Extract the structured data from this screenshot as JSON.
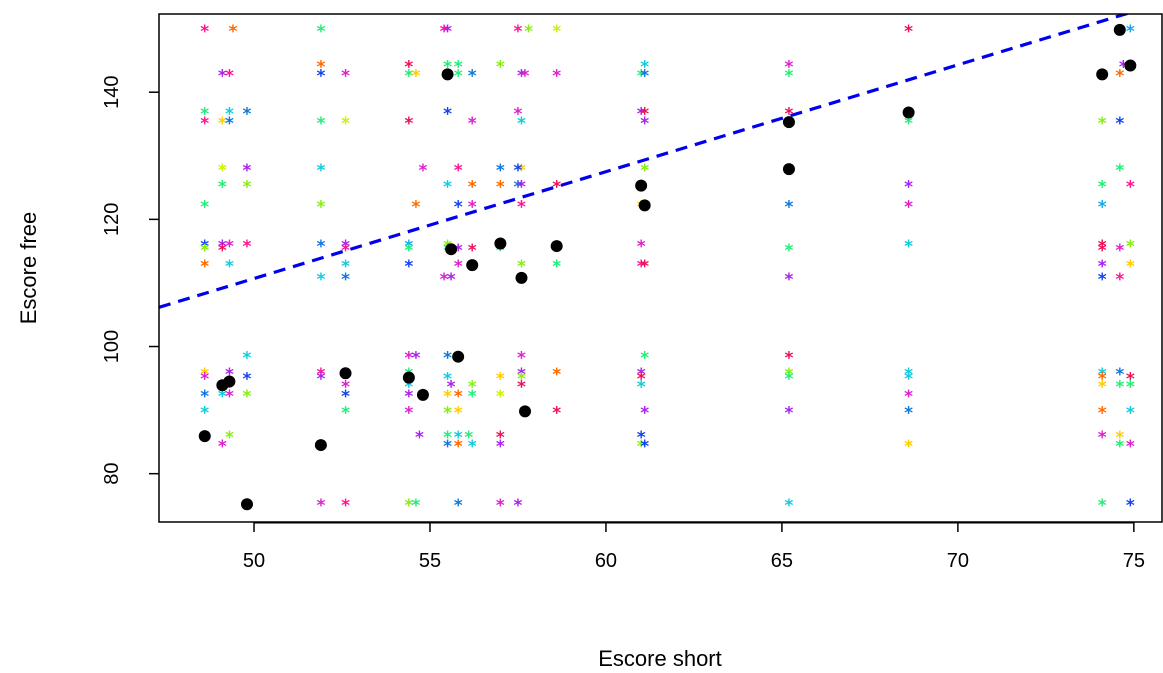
{
  "chart_data": {
    "type": "scatter",
    "xlabel": "Escore short",
    "ylabel": "Escore free",
    "xlim": [
      47.3,
      75.8
    ],
    "ylim": [
      72.4,
      152.3
    ],
    "xticks": [
      50,
      55,
      60,
      65,
      70,
      75
    ],
    "yticks": [
      80,
      100,
      120,
      140
    ],
    "fit_line": {
      "intercept": 26.7,
      "slope": 1.68,
      "color": "#0000ee",
      "style": "dashed"
    },
    "mean_points": [
      {
        "x": 48.6,
        "y": 85.9
      },
      {
        "x": 49.1,
        "y": 93.9
      },
      {
        "x": 49.3,
        "y": 94.5
      },
      {
        "x": 49.8,
        "y": 75.2
      },
      {
        "x": 51.9,
        "y": 84.5
      },
      {
        "x": 52.6,
        "y": 95.8
      },
      {
        "x": 54.4,
        "y": 95.1
      },
      {
        "x": 54.8,
        "y": 92.4
      },
      {
        "x": 55.5,
        "y": 142.8
      },
      {
        "x": 55.6,
        "y": 115.3
      },
      {
        "x": 55.8,
        "y": 98.4
      },
      {
        "x": 56.2,
        "y": 112.8
      },
      {
        "x": 57.0,
        "y": 116.2
      },
      {
        "x": 57.6,
        "y": 110.8
      },
      {
        "x": 57.7,
        "y": 89.8
      },
      {
        "x": 58.6,
        "y": 115.8
      },
      {
        "x": 61.0,
        "y": 125.3
      },
      {
        "x": 61.1,
        "y": 122.2
      },
      {
        "x": 65.2,
        "y": 135.3
      },
      {
        "x": 65.2,
        "y": 127.9
      },
      {
        "x": 68.6,
        "y": 136.8
      },
      {
        "x": 74.1,
        "y": 142.8
      },
      {
        "x": 74.6,
        "y": 149.8
      },
      {
        "x": 74.9,
        "y": 144.2
      }
    ],
    "individual_points": [
      {
        "x": 48.6,
        "y": 149.8,
        "c": "#ff1493"
      },
      {
        "x": 49.4,
        "y": 149.8,
        "c": "#ff6a00"
      },
      {
        "x": 51.9,
        "y": 149.8,
        "c": "#22ee77"
      },
      {
        "x": 55.4,
        "y": 149.8,
        "c": "#ff1493"
      },
      {
        "x": 55.5,
        "y": 149.8,
        "c": "#aa22ee"
      },
      {
        "x": 57.5,
        "y": 149.8,
        "c": "#ff1493"
      },
      {
        "x": 57.8,
        "y": 149.8,
        "c": "#88ee11"
      },
      {
        "x": 58.6,
        "y": 149.8,
        "c": "#ccee11"
      },
      {
        "x": 68.6,
        "y": 149.8,
        "c": "#ee1155"
      },
      {
        "x": 74.9,
        "y": 149.8,
        "c": "#11aaee"
      },
      {
        "x": 51.9,
        "y": 144.2,
        "c": "#ff6a00"
      },
      {
        "x": 54.4,
        "y": 144.2,
        "c": "#ee1155"
      },
      {
        "x": 55.5,
        "y": 144.2,
        "c": "#22ee77"
      },
      {
        "x": 55.8,
        "y": 144.2,
        "c": "#22ee77"
      },
      {
        "x": 57.0,
        "y": 144.2,
        "c": "#88ee11"
      },
      {
        "x": 61.1,
        "y": 144.2,
        "c": "#11ccdd"
      },
      {
        "x": 65.2,
        "y": 144.2,
        "c": "#dd22cc"
      },
      {
        "x": 74.7,
        "y": 144.2,
        "c": "#aa22ee"
      },
      {
        "x": 49.1,
        "y": 142.8,
        "c": "#aa22ee"
      },
      {
        "x": 49.3,
        "y": 142.8,
        "c": "#ff1493"
      },
      {
        "x": 51.9,
        "y": 142.8,
        "c": "#1144ee"
      },
      {
        "x": 52.6,
        "y": 142.8,
        "c": "#dd22cc"
      },
      {
        "x": 54.4,
        "y": 142.8,
        "c": "#22ee77"
      },
      {
        "x": 54.6,
        "y": 142.8,
        "c": "#ffcc00"
      },
      {
        "x": 55.8,
        "y": 142.8,
        "c": "#22ee77"
      },
      {
        "x": 56.2,
        "y": 142.8,
        "c": "#1177dd"
      },
      {
        "x": 57.6,
        "y": 142.8,
        "c": "#aa22ee"
      },
      {
        "x": 57.7,
        "y": 142.8,
        "c": "#dd22cc"
      },
      {
        "x": 58.6,
        "y": 142.8,
        "c": "#dd22cc"
      },
      {
        "x": 61.0,
        "y": 142.8,
        "c": "#22ee77"
      },
      {
        "x": 61.1,
        "y": 142.8,
        "c": "#1177dd"
      },
      {
        "x": 65.2,
        "y": 142.8,
        "c": "#22ee77"
      },
      {
        "x": 74.6,
        "y": 142.8,
        "c": "#ff6a00"
      },
      {
        "x": 48.6,
        "y": 136.8,
        "c": "#22ee77"
      },
      {
        "x": 49.3,
        "y": 136.8,
        "c": "#11ccdd"
      },
      {
        "x": 49.8,
        "y": 136.8,
        "c": "#1177dd"
      },
      {
        "x": 55.5,
        "y": 136.8,
        "c": "#1144ee"
      },
      {
        "x": 57.5,
        "y": 136.8,
        "c": "#dd22cc"
      },
      {
        "x": 61.0,
        "y": 136.8,
        "c": "#aa22ee"
      },
      {
        "x": 61.1,
        "y": 136.8,
        "c": "#ee1155"
      },
      {
        "x": 65.2,
        "y": 136.8,
        "c": "#ee1155"
      },
      {
        "x": 48.6,
        "y": 135.3,
        "c": "#ff1493"
      },
      {
        "x": 49.1,
        "y": 135.3,
        "c": "#ffcc00"
      },
      {
        "x": 49.3,
        "y": 135.3,
        "c": "#1177dd"
      },
      {
        "x": 51.9,
        "y": 135.3,
        "c": "#22ee77"
      },
      {
        "x": 52.6,
        "y": 135.3,
        "c": "#ccee11"
      },
      {
        "x": 54.4,
        "y": 135.3,
        "c": "#ee1155"
      },
      {
        "x": 56.2,
        "y": 135.3,
        "c": "#dd22cc"
      },
      {
        "x": 57.6,
        "y": 135.3,
        "c": "#11ccdd"
      },
      {
        "x": 61.1,
        "y": 135.3,
        "c": "#aa22ee"
      },
      {
        "x": 68.6,
        "y": 135.3,
        "c": "#22ee77"
      },
      {
        "x": 74.1,
        "y": 135.3,
        "c": "#88ee11"
      },
      {
        "x": 74.6,
        "y": 135.3,
        "c": "#1144ee"
      },
      {
        "x": 49.1,
        "y": 127.9,
        "c": "#ccee11"
      },
      {
        "x": 49.8,
        "y": 127.9,
        "c": "#aa22ee"
      },
      {
        "x": 51.9,
        "y": 127.9,
        "c": "#11ccdd"
      },
      {
        "x": 54.8,
        "y": 127.9,
        "c": "#dd22cc"
      },
      {
        "x": 55.8,
        "y": 127.9,
        "c": "#ff1493"
      },
      {
        "x": 57.0,
        "y": 127.9,
        "c": "#1177dd"
      },
      {
        "x": 57.6,
        "y": 127.9,
        "c": "#ffcc00"
      },
      {
        "x": 57.5,
        "y": 127.9,
        "c": "#1144ee"
      },
      {
        "x": 61.1,
        "y": 127.9,
        "c": "#88ee11"
      },
      {
        "x": 74.6,
        "y": 127.9,
        "c": "#22ee77"
      },
      {
        "x": 49.1,
        "y": 125.3,
        "c": "#22ee77"
      },
      {
        "x": 49.8,
        "y": 125.3,
        "c": "#88ee11"
      },
      {
        "x": 55.5,
        "y": 125.3,
        "c": "#11ccdd"
      },
      {
        "x": 56.2,
        "y": 125.3,
        "c": "#ff6a00"
      },
      {
        "x": 57.0,
        "y": 125.3,
        "c": "#ff6a00"
      },
      {
        "x": 57.5,
        "y": 125.3,
        "c": "#1177dd"
      },
      {
        "x": 57.6,
        "y": 125.3,
        "c": "#aa22ee"
      },
      {
        "x": 58.6,
        "y": 125.3,
        "c": "#ee1155"
      },
      {
        "x": 68.6,
        "y": 125.3,
        "c": "#aa22ee"
      },
      {
        "x": 74.1,
        "y": 125.3,
        "c": "#22ee77"
      },
      {
        "x": 74.9,
        "y": 125.3,
        "c": "#ff1493"
      },
      {
        "x": 48.6,
        "y": 122.2,
        "c": "#22ee77"
      },
      {
        "x": 51.9,
        "y": 122.2,
        "c": "#88ee11"
      },
      {
        "x": 54.6,
        "y": 122.2,
        "c": "#ff6a00"
      },
      {
        "x": 55.8,
        "y": 122.2,
        "c": "#1144ee"
      },
      {
        "x": 56.2,
        "y": 122.2,
        "c": "#dd22cc"
      },
      {
        "x": 57.6,
        "y": 122.2,
        "c": "#ff1493"
      },
      {
        "x": 61.0,
        "y": 122.2,
        "c": "#ffcc00"
      },
      {
        "x": 65.2,
        "y": 122.2,
        "c": "#1177dd"
      },
      {
        "x": 68.6,
        "y": 122.2,
        "c": "#dd22cc"
      },
      {
        "x": 74.1,
        "y": 122.2,
        "c": "#11aaee"
      },
      {
        "x": 48.6,
        "y": 116.0,
        "c": "#1144ee"
      },
      {
        "x": 49.1,
        "y": 116.0,
        "c": "#aa22ee"
      },
      {
        "x": 49.3,
        "y": 116.0,
        "c": "#dd22cc"
      },
      {
        "x": 49.8,
        "y": 116.0,
        "c": "#ff1493"
      },
      {
        "x": 51.9,
        "y": 116.0,
        "c": "#1177dd"
      },
      {
        "x": 52.6,
        "y": 116.0,
        "c": "#aa22ee"
      },
      {
        "x": 54.4,
        "y": 116.0,
        "c": "#11aaee"
      },
      {
        "x": 55.5,
        "y": 116.0,
        "c": "#88ee11"
      },
      {
        "x": 61.0,
        "y": 116.0,
        "c": "#dd22cc"
      },
      {
        "x": 68.6,
        "y": 116.0,
        "c": "#11ccdd"
      },
      {
        "x": 74.1,
        "y": 116.0,
        "c": "#ee1155"
      },
      {
        "x": 74.9,
        "y": 116.0,
        "c": "#88ee11"
      },
      {
        "x": 48.6,
        "y": 115.3,
        "c": "#88ee11"
      },
      {
        "x": 49.1,
        "y": 115.3,
        "c": "#ee1155"
      },
      {
        "x": 52.6,
        "y": 115.3,
        "c": "#ff1493"
      },
      {
        "x": 54.4,
        "y": 115.3,
        "c": "#22ee77"
      },
      {
        "x": 55.5,
        "y": 115.3,
        "c": "#22ee77"
      },
      {
        "x": 55.8,
        "y": 115.3,
        "c": "#aa22ee"
      },
      {
        "x": 56.2,
        "y": 115.3,
        "c": "#ee1155"
      },
      {
        "x": 57.0,
        "y": 115.3,
        "c": "#22ee77"
      },
      {
        "x": 65.2,
        "y": 115.3,
        "c": "#22ee77"
      },
      {
        "x": 74.1,
        "y": 115.3,
        "c": "#ee1155"
      },
      {
        "x": 74.6,
        "y": 115.3,
        "c": "#dd22cc"
      },
      {
        "x": 48.6,
        "y": 112.8,
        "c": "#ff6a00"
      },
      {
        "x": 49.3,
        "y": 112.8,
        "c": "#11ccdd"
      },
      {
        "x": 52.6,
        "y": 112.8,
        "c": "#11ccdd"
      },
      {
        "x": 54.4,
        "y": 112.8,
        "c": "#1144ee"
      },
      {
        "x": 55.8,
        "y": 112.8,
        "c": "#dd22cc"
      },
      {
        "x": 57.6,
        "y": 112.8,
        "c": "#88ee11"
      },
      {
        "x": 58.6,
        "y": 112.8,
        "c": "#22ee77"
      },
      {
        "x": 61.0,
        "y": 112.8,
        "c": "#ff1493"
      },
      {
        "x": 61.1,
        "y": 112.8,
        "c": "#ee1155"
      },
      {
        "x": 74.1,
        "y": 112.8,
        "c": "#aa22ee"
      },
      {
        "x": 74.9,
        "y": 112.8,
        "c": "#ffcc00"
      },
      {
        "x": 51.9,
        "y": 110.8,
        "c": "#11ccdd"
      },
      {
        "x": 52.6,
        "y": 110.8,
        "c": "#1177dd"
      },
      {
        "x": 55.4,
        "y": 110.8,
        "c": "#dd22cc"
      },
      {
        "x": 55.6,
        "y": 110.8,
        "c": "#aa22ee"
      },
      {
        "x": 57.6,
        "y": 110.8,
        "c": "#ff6a00"
      },
      {
        "x": 65.2,
        "y": 110.8,
        "c": "#aa22ee"
      },
      {
        "x": 74.1,
        "y": 110.8,
        "c": "#1144ee"
      },
      {
        "x": 74.6,
        "y": 110.8,
        "c": "#ff1493"
      },
      {
        "x": 49.8,
        "y": 98.4,
        "c": "#11ccdd"
      },
      {
        "x": 54.4,
        "y": 98.4,
        "c": "#dd22cc"
      },
      {
        "x": 54.6,
        "y": 98.4,
        "c": "#aa22ee"
      },
      {
        "x": 55.5,
        "y": 98.4,
        "c": "#1177dd"
      },
      {
        "x": 57.6,
        "y": 98.4,
        "c": "#dd22cc"
      },
      {
        "x": 61.1,
        "y": 98.4,
        "c": "#22ee77"
      },
      {
        "x": 65.2,
        "y": 98.4,
        "c": "#ee1155"
      },
      {
        "x": 48.6,
        "y": 95.8,
        "c": "#ffcc00"
      },
      {
        "x": 49.3,
        "y": 95.8,
        "c": "#aa22ee"
      },
      {
        "x": 51.9,
        "y": 95.8,
        "c": "#ff1493"
      },
      {
        "x": 54.4,
        "y": 95.8,
        "c": "#22ee77"
      },
      {
        "x": 57.6,
        "y": 95.8,
        "c": "#aa22ee"
      },
      {
        "x": 58.6,
        "y": 95.8,
        "c": "#ff6a00"
      },
      {
        "x": 61.0,
        "y": 95.8,
        "c": "#aa22ee"
      },
      {
        "x": 65.2,
        "y": 95.8,
        "c": "#88ee11"
      },
      {
        "x": 68.6,
        "y": 95.8,
        "c": "#11ccdd"
      },
      {
        "x": 74.1,
        "y": 95.8,
        "c": "#11ccdd"
      },
      {
        "x": 74.6,
        "y": 95.8,
        "c": "#1177dd"
      },
      {
        "x": 48.6,
        "y": 95.1,
        "c": "#dd22cc"
      },
      {
        "x": 49.8,
        "y": 95.1,
        "c": "#1144ee"
      },
      {
        "x": 51.9,
        "y": 95.1,
        "c": "#aa22ee"
      },
      {
        "x": 55.5,
        "y": 95.1,
        "c": "#11ccdd"
      },
      {
        "x": 57.0,
        "y": 95.1,
        "c": "#ffcc00"
      },
      {
        "x": 57.6,
        "y": 95.1,
        "c": "#88ee11"
      },
      {
        "x": 61.0,
        "y": 95.1,
        "c": "#ee1155"
      },
      {
        "x": 65.2,
        "y": 95.1,
        "c": "#22ee77"
      },
      {
        "x": 68.6,
        "y": 95.1,
        "c": "#11ccdd"
      },
      {
        "x": 74.1,
        "y": 95.1,
        "c": "#ff6a00"
      },
      {
        "x": 74.9,
        "y": 95.1,
        "c": "#ee1155"
      },
      {
        "x": 49.3,
        "y": 93.9,
        "c": "#ff1493"
      },
      {
        "x": 52.6,
        "y": 93.9,
        "c": "#dd22cc"
      },
      {
        "x": 54.4,
        "y": 93.9,
        "c": "#11ccdd"
      },
      {
        "x": 55.6,
        "y": 93.9,
        "c": "#aa22ee"
      },
      {
        "x": 56.2,
        "y": 93.9,
        "c": "#88ee11"
      },
      {
        "x": 57.6,
        "y": 93.9,
        "c": "#ee1155"
      },
      {
        "x": 61.0,
        "y": 93.9,
        "c": "#11ccdd"
      },
      {
        "x": 74.1,
        "y": 93.9,
        "c": "#ffcc00"
      },
      {
        "x": 74.6,
        "y": 93.9,
        "c": "#22ee77"
      },
      {
        "x": 74.9,
        "y": 93.9,
        "c": "#22ee77"
      },
      {
        "x": 48.6,
        "y": 92.4,
        "c": "#1177dd"
      },
      {
        "x": 49.1,
        "y": 92.4,
        "c": "#11ccdd"
      },
      {
        "x": 49.3,
        "y": 92.4,
        "c": "#dd22cc"
      },
      {
        "x": 49.8,
        "y": 92.4,
        "c": "#88ee11"
      },
      {
        "x": 52.6,
        "y": 92.4,
        "c": "#1144ee"
      },
      {
        "x": 54.4,
        "y": 92.4,
        "c": "#aa22ee"
      },
      {
        "x": 55.5,
        "y": 92.4,
        "c": "#ffcc00"
      },
      {
        "x": 55.8,
        "y": 92.4,
        "c": "#ff6a00"
      },
      {
        "x": 56.2,
        "y": 92.4,
        "c": "#22ee77"
      },
      {
        "x": 57.0,
        "y": 92.4,
        "c": "#ccee11"
      },
      {
        "x": 68.6,
        "y": 92.4,
        "c": "#dd22cc"
      },
      {
        "x": 48.6,
        "y": 89.8,
        "c": "#11ccdd"
      },
      {
        "x": 52.6,
        "y": 89.8,
        "c": "#22ee77"
      },
      {
        "x": 54.4,
        "y": 89.8,
        "c": "#dd22cc"
      },
      {
        "x": 55.5,
        "y": 89.8,
        "c": "#88ee11"
      },
      {
        "x": 55.8,
        "y": 89.8,
        "c": "#ffcc00"
      },
      {
        "x": 58.6,
        "y": 89.8,
        "c": "#ee1155"
      },
      {
        "x": 61.1,
        "y": 89.8,
        "c": "#aa22ee"
      },
      {
        "x": 65.2,
        "y": 89.8,
        "c": "#aa22ee"
      },
      {
        "x": 68.6,
        "y": 89.8,
        "c": "#1177dd"
      },
      {
        "x": 74.1,
        "y": 89.8,
        "c": "#ff6a00"
      },
      {
        "x": 74.9,
        "y": 89.8,
        "c": "#11ccdd"
      },
      {
        "x": 49.3,
        "y": 85.9,
        "c": "#88ee11"
      },
      {
        "x": 54.7,
        "y": 85.9,
        "c": "#aa22ee"
      },
      {
        "x": 55.5,
        "y": 85.9,
        "c": "#22ee77"
      },
      {
        "x": 55.8,
        "y": 85.9,
        "c": "#11ccdd"
      },
      {
        "x": 56.1,
        "y": 85.9,
        "c": "#22ee77"
      },
      {
        "x": 57.0,
        "y": 85.9,
        "c": "#ee1155"
      },
      {
        "x": 61.0,
        "y": 85.9,
        "c": "#1144ee"
      },
      {
        "x": 74.1,
        "y": 85.9,
        "c": "#dd22cc"
      },
      {
        "x": 74.6,
        "y": 85.9,
        "c": "#ffcc00"
      },
      {
        "x": 49.1,
        "y": 84.5,
        "c": "#dd22cc"
      },
      {
        "x": 55.5,
        "y": 84.5,
        "c": "#1177dd"
      },
      {
        "x": 55.8,
        "y": 84.5,
        "c": "#ff6a00"
      },
      {
        "x": 56.2,
        "y": 84.5,
        "c": "#11ccdd"
      },
      {
        "x": 57.0,
        "y": 84.5,
        "c": "#aa22ee"
      },
      {
        "x": 61.0,
        "y": 84.5,
        "c": "#88ee11"
      },
      {
        "x": 61.1,
        "y": 84.5,
        "c": "#1144ee"
      },
      {
        "x": 68.6,
        "y": 84.5,
        "c": "#ffcc00"
      },
      {
        "x": 74.6,
        "y": 84.5,
        "c": "#22ee77"
      },
      {
        "x": 74.9,
        "y": 84.5,
        "c": "#dd22cc"
      },
      {
        "x": 51.9,
        "y": 75.2,
        "c": "#dd22cc"
      },
      {
        "x": 52.6,
        "y": 75.2,
        "c": "#ff1493"
      },
      {
        "x": 54.4,
        "y": 75.2,
        "c": "#88ee11"
      },
      {
        "x": 54.6,
        "y": 75.2,
        "c": "#22ee77"
      },
      {
        "x": 55.8,
        "y": 75.2,
        "c": "#1177dd"
      },
      {
        "x": 57.0,
        "y": 75.2,
        "c": "#dd22cc"
      },
      {
        "x": 57.5,
        "y": 75.2,
        "c": "#aa22ee"
      },
      {
        "x": 65.2,
        "y": 75.2,
        "c": "#11ccdd"
      },
      {
        "x": 74.1,
        "y": 75.2,
        "c": "#22ee77"
      },
      {
        "x": 74.9,
        "y": 75.2,
        "c": "#1144ee"
      }
    ]
  }
}
